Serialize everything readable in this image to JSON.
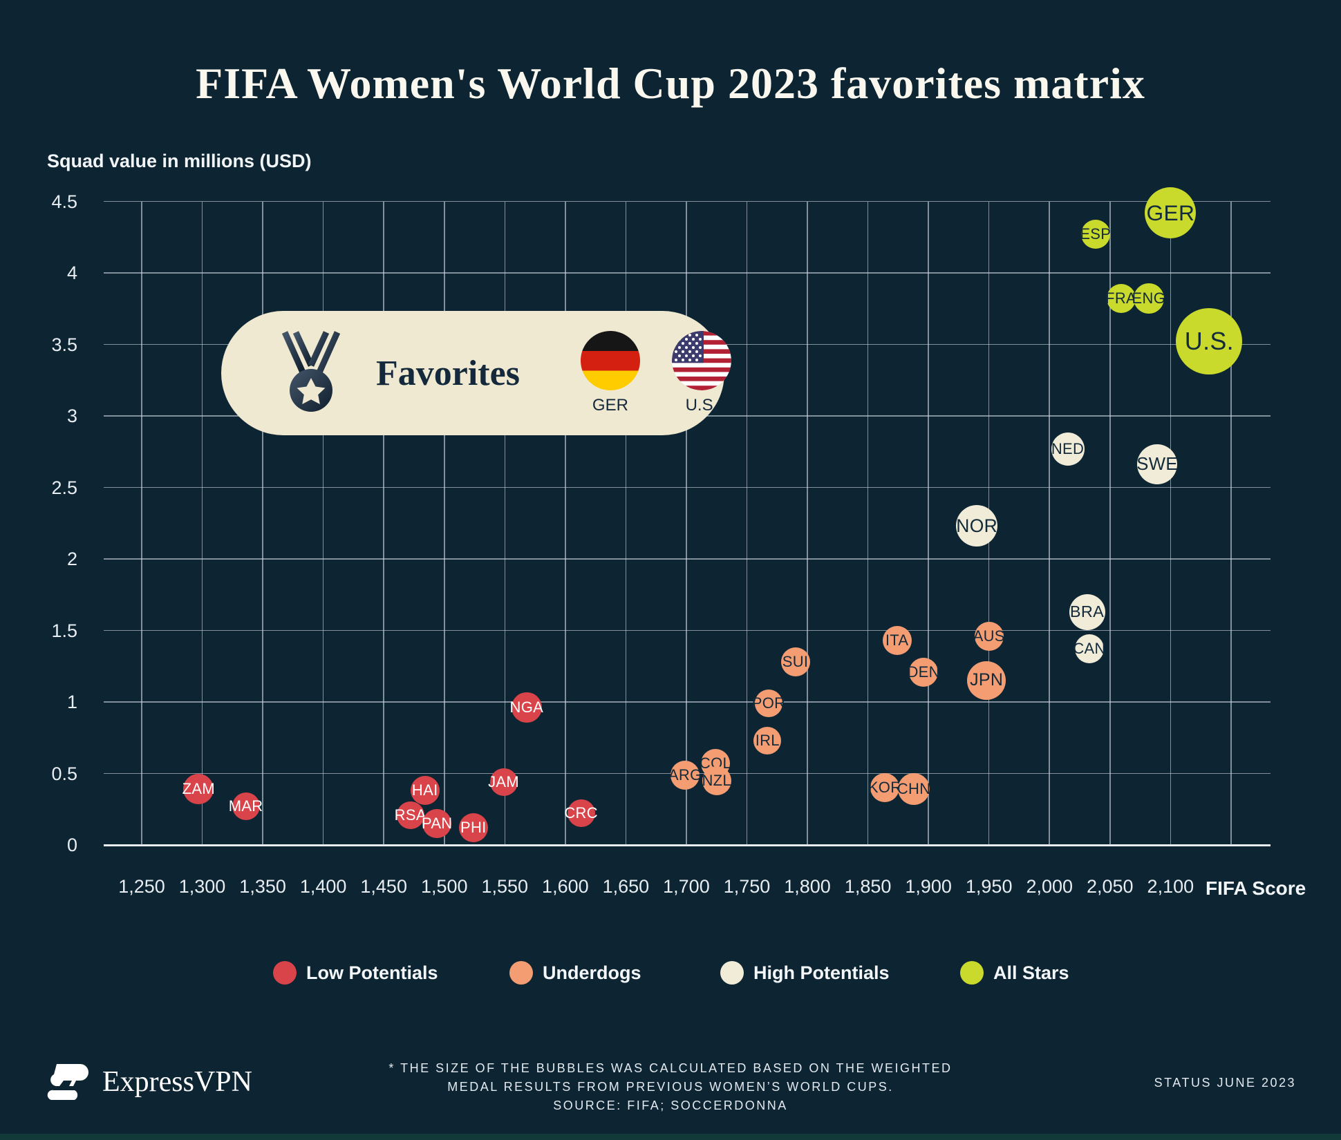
{
  "title": "FIFA Women's World Cup 2023 favorites matrix",
  "y_axis_title": "Squad value in millions (USD)",
  "x_axis_title": "FIFA Score",
  "badge": {
    "label": "Favorites",
    "medal_icon": "medal-icon",
    "flags": [
      {
        "code": "GER",
        "label": "GER"
      },
      {
        "code": "U.S.",
        "label": "U.S."
      }
    ]
  },
  "legend": [
    {
      "label": "Low Potentials",
      "color": "#d9434a"
    },
    {
      "label": "Underdogs",
      "color": "#f49d73"
    },
    {
      "label": "High Potentials",
      "color": "#f0ecd8"
    },
    {
      "label": "All Stars",
      "color": "#c9da2c"
    }
  ],
  "footer": {
    "brand": "ExpressVPN",
    "note_lines": [
      "* THE SIZE OF THE BUBBLES WAS CALCULATED BASED ON THE WEIGHTED",
      "MEDAL RESULTS FROM PREVIOUS WOMEN’S WORLD CUPS.",
      "SOURCE: FIFA; SOCCERDONNA"
    ],
    "status": "STATUS JUNE 2023"
  },
  "chart_data": {
    "type": "scatter",
    "subtype": "bubble",
    "title": "FIFA Women's World Cup 2023 favorites matrix",
    "xlabel": "FIFA Score",
    "ylabel": "Squad value in millions (USD)",
    "xlim": [
      1219,
      2183
    ],
    "ylim": [
      0,
      4.5
    ],
    "grid": true,
    "x_ticks": [
      {
        "value": 1250,
        "label": "1,250"
      },
      {
        "value": 1300,
        "label": "1,300"
      },
      {
        "value": 1350,
        "label": "1,350"
      },
      {
        "value": 1400,
        "label": "1,400"
      },
      {
        "value": 1450,
        "label": "1,450"
      },
      {
        "value": 1500,
        "label": "1,500"
      },
      {
        "value": 1550,
        "label": "1,550"
      },
      {
        "value": 1600,
        "label": "1,600"
      },
      {
        "value": 1650,
        "label": "1,650"
      },
      {
        "value": 1700,
        "label": "1,700"
      },
      {
        "value": 1750,
        "label": "1,750"
      },
      {
        "value": 1800,
        "label": "1,800"
      },
      {
        "value": 1850,
        "label": "1,850"
      },
      {
        "value": 1900,
        "label": "1,900"
      },
      {
        "value": 1950,
        "label": "1,950"
      },
      {
        "value": 2000,
        "label": "2,000"
      },
      {
        "value": 2050,
        "label": "2,050"
      },
      {
        "value": 2100,
        "label": "2,100"
      },
      {
        "value": 2150,
        "label": ""
      }
    ],
    "y_ticks": [
      {
        "value": 0,
        "label": "0"
      },
      {
        "value": 0.5,
        "label": "0.5"
      },
      {
        "value": 1,
        "label": "1"
      },
      {
        "value": 1.5,
        "label": "1.5"
      },
      {
        "value": 2,
        "label": "2"
      },
      {
        "value": 2.5,
        "label": "2.5"
      },
      {
        "value": 3,
        "label": "3"
      },
      {
        "value": 3.5,
        "label": "3.5"
      },
      {
        "value": 4,
        "label": "4"
      },
      {
        "value": 4.5,
        "label": "4.5"
      }
    ],
    "size_note": "bubble size = weighted medal results from previous Women's World Cups",
    "series": [
      {
        "name": "Low Potentials",
        "color": "#d9434a",
        "text_color": "#ffffff",
        "points": [
          {
            "code": "ZAM",
            "x": 1297,
            "y": 0.39,
            "r": 22
          },
          {
            "code": "MAR",
            "x": 1336,
            "y": 0.27,
            "r": 20
          },
          {
            "code": "HAI",
            "x": 1484,
            "y": 0.38,
            "r": 21
          },
          {
            "code": "RSA",
            "x": 1472,
            "y": 0.21,
            "r": 20
          },
          {
            "code": "PAN",
            "x": 1494,
            "y": 0.15,
            "r": 21
          },
          {
            "code": "PHI",
            "x": 1524,
            "y": 0.12,
            "r": 21
          },
          {
            "code": "JAM",
            "x": 1549,
            "y": 0.44,
            "r": 20
          },
          {
            "code": "NGA",
            "x": 1568,
            "y": 0.96,
            "r": 22
          },
          {
            "code": "CRC",
            "x": 1613,
            "y": 0.22,
            "r": 20
          }
        ]
      },
      {
        "name": "Underdogs",
        "color": "#f49d73",
        "text_color": "#132a3a",
        "points": [
          {
            "code": "ARG",
            "x": 1699,
            "y": 0.49,
            "r": 21
          },
          {
            "code": "COL",
            "x": 1724,
            "y": 0.57,
            "r": 21
          },
          {
            "code": "NZL",
            "x": 1725,
            "y": 0.45,
            "r": 21
          },
          {
            "code": "IRL",
            "x": 1767,
            "y": 0.73,
            "r": 20
          },
          {
            "code": "POR",
            "x": 1768,
            "y": 0.99,
            "r": 20
          },
          {
            "code": "SUI",
            "x": 1790,
            "y": 1.28,
            "r": 21
          },
          {
            "code": "ITA",
            "x": 1874,
            "y": 1.43,
            "r": 21
          },
          {
            "code": "DEN",
            "x": 1896,
            "y": 1.21,
            "r": 21
          },
          {
            "code": "KOR",
            "x": 1864,
            "y": 0.4,
            "r": 21
          },
          {
            "code": "CHN",
            "x": 1888,
            "y": 0.39,
            "r": 23
          },
          {
            "code": "AUS",
            "x": 1950,
            "y": 1.46,
            "r": 21
          },
          {
            "code": "JPN",
            "x": 1948,
            "y": 1.15,
            "r": 28
          }
        ]
      },
      {
        "name": "High Potentials",
        "color": "#f0ecd8",
        "text_color": "#132a3a",
        "points": [
          {
            "code": "NOR",
            "x": 1940,
            "y": 2.23,
            "r": 30
          },
          {
            "code": "NED",
            "x": 2015,
            "y": 2.77,
            "r": 24
          },
          {
            "code": "SWE",
            "x": 2089,
            "y": 2.66,
            "r": 29
          },
          {
            "code": "BRA",
            "x": 2031,
            "y": 1.63,
            "r": 26
          },
          {
            "code": "CAN",
            "x": 2033,
            "y": 1.37,
            "r": 21
          }
        ]
      },
      {
        "name": "All Stars",
        "color": "#c9da2c",
        "text_color": "#132a3a",
        "points": [
          {
            "code": "ESP",
            "x": 2038,
            "y": 4.27,
            "r": 21
          },
          {
            "code": "GER",
            "x": 2100,
            "y": 4.42,
            "r": 37
          },
          {
            "code": "FRA",
            "x": 2059,
            "y": 3.82,
            "r": 21
          },
          {
            "code": "ENG",
            "x": 2082,
            "y": 3.82,
            "r": 22
          },
          {
            "code": "U.S.",
            "x": 2132,
            "y": 3.52,
            "r": 48
          }
        ]
      }
    ]
  }
}
